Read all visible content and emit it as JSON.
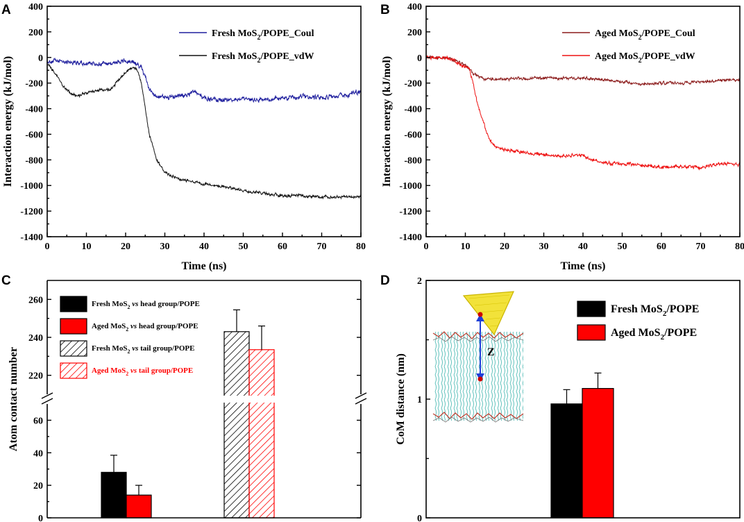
{
  "chart_data": [
    {
      "panel": "A",
      "type": "line",
      "xlabel": "Time (ns)",
      "ylabel": "Interaction energy (kJ/mol)",
      "xlim": [
        0,
        80
      ],
      "ylim": [
        -1400,
        400
      ],
      "xticks": [
        "0",
        "10",
        "20",
        "30",
        "40",
        "50",
        "60",
        "70",
        "80"
      ],
      "yticks": [
        "-1400",
        "-1200",
        "-1000",
        "-800",
        "-600",
        "-400",
        "-200",
        "0",
        "200",
        "400"
      ],
      "series": [
        {
          "name": "Fresh MoS2/POPE_Coul",
          "legend_main": "Fresh MoS",
          "legend_sub": "2",
          "legend_rest": "/POPE_Coul",
          "color": "#1f1f9e",
          "noise": 22,
          "x": [
            0,
            5,
            10,
            15,
            20,
            22,
            23,
            24,
            25,
            26,
            27,
            28,
            30,
            35,
            38,
            40,
            45,
            50,
            55,
            60,
            65,
            70,
            75,
            80
          ],
          "y": [
            -30,
            -30,
            -50,
            -50,
            -30,
            -40,
            -60,
            -80,
            -150,
            -250,
            -280,
            -300,
            -310,
            -300,
            -260,
            -320,
            -330,
            -330,
            -330,
            -320,
            -310,
            -310,
            -300,
            -270
          ]
        },
        {
          "name": "Fresh MoS2/POPE_vdW",
          "legend_main": "Fresh MoS",
          "legend_sub": "2",
          "legend_rest": "/POPE_vdW",
          "color": "#111111",
          "noise": 14,
          "x": [
            0,
            2,
            4,
            6,
            8,
            10,
            13,
            16,
            19,
            21,
            22,
            23,
            24,
            25,
            26,
            27,
            28,
            29,
            30,
            32,
            35,
            40,
            45,
            50,
            55,
            60,
            65,
            70,
            75,
            80
          ],
          "y": [
            -50,
            -120,
            -220,
            -280,
            -300,
            -280,
            -260,
            -250,
            -150,
            -90,
            -80,
            -100,
            -200,
            -400,
            -600,
            -700,
            -800,
            -850,
            -900,
            -930,
            -960,
            -990,
            -1010,
            -1040,
            -1060,
            -1080,
            -1080,
            -1090,
            -1090,
            -1080
          ]
        }
      ]
    },
    {
      "panel": "B",
      "type": "line",
      "xlabel": "Time (ns)",
      "ylabel": "Interaction energy (kJ/mol)",
      "xlim": [
        0,
        80
      ],
      "ylim": [
        -1400,
        400
      ],
      "xticks": [
        "0",
        "10",
        "20",
        "30",
        "40",
        "50",
        "60",
        "70",
        "80"
      ],
      "yticks": [
        "-1400",
        "-1200",
        "-1000",
        "-800",
        "-600",
        "-400",
        "-200",
        "0",
        "200",
        "400"
      ],
      "series": [
        {
          "name": "Aged MoS2/POPE_Coul",
          "legend_main": "Aged MoS",
          "legend_sub": "2",
          "legend_rest": "/POPE_Coul",
          "color": "#8b1a1a",
          "noise": 14,
          "x": [
            0,
            5,
            6,
            7,
            8,
            10,
            12,
            14,
            15,
            16,
            20,
            30,
            40,
            50,
            55,
            60,
            65,
            70,
            75,
            80
          ],
          "y": [
            0,
            0,
            -5,
            -20,
            -30,
            -60,
            -120,
            -160,
            -170,
            -170,
            -170,
            -160,
            -160,
            -190,
            -210,
            -200,
            -200,
            -190,
            -180,
            -175
          ]
        },
        {
          "name": "Aged MoS2/POPE_vdW",
          "legend_main": "Aged MoS",
          "legend_sub": "2",
          "legend_rest": "/POPE_vdW",
          "color": "#ee1111",
          "noise": 16,
          "x": [
            0,
            5,
            6,
            7,
            8,
            9,
            10,
            11,
            12,
            13,
            14,
            15,
            16,
            17,
            18,
            20,
            25,
            30,
            35,
            40,
            42,
            45,
            50,
            55,
            60,
            65,
            70,
            75,
            80
          ],
          "y": [
            0,
            0,
            -5,
            -20,
            -40,
            -60,
            -70,
            -90,
            -200,
            -350,
            -450,
            -550,
            -630,
            -680,
            -700,
            -720,
            -740,
            -760,
            -770,
            -760,
            -800,
            -820,
            -830,
            -840,
            -860,
            -850,
            -860,
            -830,
            -830
          ]
        }
      ]
    },
    {
      "panel": "C",
      "type": "bar",
      "ylabel": "Atom contact number",
      "ylim_lower": [
        0,
        70
      ],
      "ylim_upper": [
        210,
        270
      ],
      "yticks_lower": [
        "0",
        "20",
        "40",
        "60"
      ],
      "yticks_upper": [
        "220",
        "240",
        "260"
      ],
      "legend": [
        {
          "pre": "Fresh MoS",
          "sub": "2",
          "vs": " vs ",
          "post": "head group/POPE",
          "fill": "#000000",
          "hatch": false
        },
        {
          "pre": "Aged  MoS",
          "sub": "2",
          "vs": " vs ",
          "post": "head group/POPE",
          "fill": "#ff0000",
          "hatch": false
        },
        {
          "pre": "Fresh MoS",
          "sub": "2",
          "vs": " vs ",
          "post": "tail  group/POPE",
          "fill": "#000000",
          "hatch": true
        },
        {
          "pre": "Aged  MoS",
          "sub": "2",
          "vs": " vs ",
          "post": "tail group/POPE",
          "fill": "#ff0000",
          "hatch": true
        }
      ],
      "bars": [
        {
          "name": "Fresh MoS2 vs head group/POPE",
          "value": 28,
          "error": 10.5
        },
        {
          "name": "Aged MoS2 vs head group/POPE",
          "value": 14,
          "error": 6
        },
        {
          "name": "Fresh MoS2 vs tail group/POPE",
          "value": 243,
          "error": 11.5
        },
        {
          "name": "Aged MoS2 vs tail group/POPE",
          "value": 233.5,
          "error": 12.5
        }
      ]
    },
    {
      "panel": "D",
      "type": "bar",
      "ylabel": "CoM distance (nm)",
      "ylim": [
        0,
        2
      ],
      "yticks": [
        "0",
        "1",
        "2"
      ],
      "inset_label": "Z",
      "legend": [
        {
          "pre": "Fresh MoS",
          "sub": "2",
          "post": "/POPE",
          "fill": "#000000"
        },
        {
          "pre": "Aged  MoS",
          "sub": "2",
          "post": "/POPE",
          "fill": "#ff0000"
        }
      ],
      "bars": [
        {
          "name": "Fresh MoS2/POPE",
          "value": 0.96,
          "error": 0.12
        },
        {
          "name": "Aged MoS2/POPE",
          "value": 1.09,
          "error": 0.13
        }
      ]
    }
  ]
}
